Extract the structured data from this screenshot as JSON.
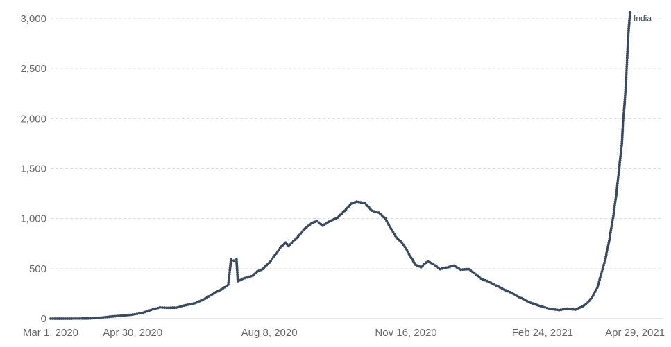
{
  "chart_data": {
    "type": "line",
    "title": "",
    "xlabel": "",
    "ylabel": "",
    "ylim": [
      0,
      3000
    ],
    "yticks": [
      {
        "value": 0,
        "label": "0"
      },
      {
        "value": 500,
        "label": "500"
      },
      {
        "value": 1000,
        "label": "1,000"
      },
      {
        "value": 1500,
        "label": "1,500"
      },
      {
        "value": 2000,
        "label": "2,000"
      },
      {
        "value": 2500,
        "label": "2,500"
      },
      {
        "value": 3000,
        "label": "3,000"
      }
    ],
    "xlim": [
      "2020-03-01",
      "2021-04-29"
    ],
    "xticks": [
      {
        "value": "2020-03-01",
        "label": "Mar 1, 2020"
      },
      {
        "value": "2020-04-30",
        "label": "Apr 30, 2020"
      },
      {
        "value": "2020-08-08",
        "label": "Aug 8, 2020"
      },
      {
        "value": "2020-11-16",
        "label": "Nov 16, 2020"
      },
      {
        "value": "2021-02-24",
        "label": "Feb 24, 2021"
      },
      {
        "value": "2021-04-29",
        "label": "Apr 29, 2021"
      }
    ],
    "grid": true,
    "legend": "end-of-line label",
    "colors": {
      "series": "#3a4a5c",
      "grid": "#dcdcdc",
      "tick_text": "#666666"
    },
    "series": [
      {
        "name": "India",
        "points": [
          [
            "2020-03-01",
            0
          ],
          [
            "2020-03-15",
            0
          ],
          [
            "2020-03-30",
            2
          ],
          [
            "2020-04-10",
            15
          ],
          [
            "2020-04-20",
            28
          ],
          [
            "2020-04-30",
            40
          ],
          [
            "2020-05-08",
            60
          ],
          [
            "2020-05-15",
            95
          ],
          [
            "2020-05-20",
            112
          ],
          [
            "2020-05-25",
            108
          ],
          [
            "2020-06-01",
            110
          ],
          [
            "2020-06-08",
            135
          ],
          [
            "2020-06-15",
            155
          ],
          [
            "2020-06-22",
            200
          ],
          [
            "2020-06-30",
            265
          ],
          [
            "2020-07-05",
            300
          ],
          [
            "2020-07-09",
            340
          ],
          [
            "2020-07-11",
            590
          ],
          [
            "2020-07-13",
            580
          ],
          [
            "2020-07-15",
            592
          ],
          [
            "2020-07-16",
            375
          ],
          [
            "2020-07-20",
            400
          ],
          [
            "2020-07-27",
            430
          ],
          [
            "2020-07-30",
            470
          ],
          [
            "2020-08-03",
            495
          ],
          [
            "2020-08-08",
            560
          ],
          [
            "2020-08-13",
            650
          ],
          [
            "2020-08-16",
            710
          ],
          [
            "2020-08-20",
            760
          ],
          [
            "2020-08-22",
            725
          ],
          [
            "2020-08-29",
            820
          ],
          [
            "2020-09-03",
            900
          ],
          [
            "2020-09-08",
            955
          ],
          [
            "2020-09-12",
            975
          ],
          [
            "2020-09-16",
            930
          ],
          [
            "2020-09-22",
            980
          ],
          [
            "2020-09-27",
            1010
          ],
          [
            "2020-10-03",
            1090
          ],
          [
            "2020-10-07",
            1150
          ],
          [
            "2020-10-11",
            1170
          ],
          [
            "2020-10-17",
            1155
          ],
          [
            "2020-10-22",
            1080
          ],
          [
            "2020-10-27",
            1060
          ],
          [
            "2020-11-01",
            1000
          ],
          [
            "2020-11-05",
            900
          ],
          [
            "2020-11-09",
            810
          ],
          [
            "2020-11-13",
            760
          ],
          [
            "2020-11-16",
            700
          ],
          [
            "2020-11-19",
            625
          ],
          [
            "2020-11-23",
            540
          ],
          [
            "2020-11-27",
            515
          ],
          [
            "2020-12-02",
            575
          ],
          [
            "2020-12-06",
            545
          ],
          [
            "2020-12-11",
            495
          ],
          [
            "2020-12-17",
            515
          ],
          [
            "2020-12-21",
            530
          ],
          [
            "2020-12-26",
            490
          ],
          [
            "2021-01-01",
            495
          ],
          [
            "2021-01-05",
            455
          ],
          [
            "2021-01-10",
            400
          ],
          [
            "2021-01-17",
            360
          ],
          [
            "2021-01-24",
            310
          ],
          [
            "2021-01-31",
            265
          ],
          [
            "2021-02-07",
            215
          ],
          [
            "2021-02-14",
            165
          ],
          [
            "2021-02-21",
            130
          ],
          [
            "2021-02-24",
            120
          ],
          [
            "2021-03-01",
            100
          ],
          [
            "2021-03-08",
            85
          ],
          [
            "2021-03-14",
            100
          ],
          [
            "2021-03-20",
            90
          ],
          [
            "2021-03-25",
            120
          ],
          [
            "2021-03-29",
            160
          ],
          [
            "2021-04-02",
            230
          ],
          [
            "2021-04-05",
            310
          ],
          [
            "2021-04-08",
            450
          ],
          [
            "2021-04-11",
            600
          ],
          [
            "2021-04-14",
            800
          ],
          [
            "2021-04-17",
            1050
          ],
          [
            "2021-04-19",
            1250
          ],
          [
            "2021-04-21",
            1500
          ],
          [
            "2021-04-23",
            1750
          ],
          [
            "2021-04-24",
            2000
          ],
          [
            "2021-04-25",
            2150
          ],
          [
            "2021-04-26",
            2350
          ],
          [
            "2021-04-27",
            2650
          ],
          [
            "2021-04-28",
            2900
          ],
          [
            "2021-04-29",
            3060
          ]
        ]
      }
    ]
  }
}
